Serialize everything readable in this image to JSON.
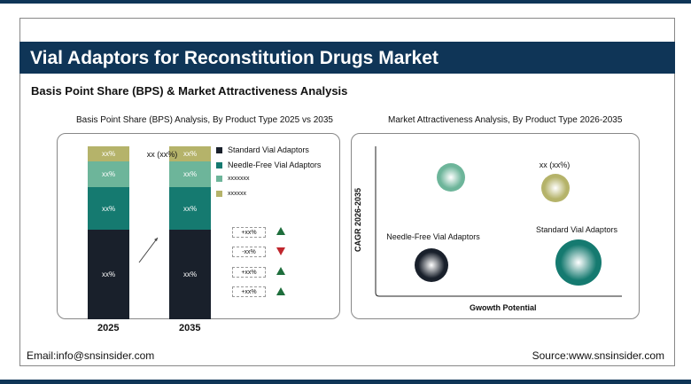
{
  "title": "Vial Adaptors for Reconstitution Drugs Market",
  "subtitle": "Basis Point Share (BPS) & Market Attractiveness Analysis",
  "footer": {
    "email": "Email:info@snsinsider.com",
    "source": "Source:www.snsinsider.com"
  },
  "colors": {
    "navy": "#0f3557",
    "standard": "#19202b",
    "needle_free": "#157a70",
    "seg3": "#6db59a",
    "seg4": "#b5b36a",
    "up": "#1e6e3c",
    "down": "#c0262d"
  },
  "chart_data": [
    {
      "type": "bar",
      "stacked": true,
      "title": "Basis Point Share (BPS) Analysis, By Product Type 2025 vs 2035",
      "categories": [
        "2025",
        "2035"
      ],
      "series": [
        {
          "name": "Standard Vial Adaptors",
          "labels": [
            "xx%",
            "xx%"
          ],
          "color": "#19202b"
        },
        {
          "name": "Needle-Free Vial Adaptors",
          "labels": [
            "xx%",
            "xx%"
          ],
          "color": "#157a70"
        },
        {
          "name": "xxxxxxx",
          "labels": [
            "xx%",
            "xx%"
          ],
          "color": "#6db59a"
        },
        {
          "name": "xxxxxx",
          "labels": [
            "xx%",
            "xx%"
          ],
          "color": "#b5b36a"
        }
      ],
      "changes": [
        {
          "label": "+xx%",
          "direction": "up"
        },
        {
          "label": "-xx%",
          "direction": "down"
        },
        {
          "label": "+xx%",
          "direction": "up"
        },
        {
          "label": "+xx%",
          "direction": "up"
        }
      ],
      "legend": "right"
    },
    {
      "type": "scatter",
      "title": "Market Attractiveness Analysis, By Product Type 2026-2035",
      "xlabel": "Gwowth Potential",
      "ylabel": "CAGR 2026-2035",
      "points": [
        {
          "label": "xx (xx%)",
          "color": "#6db59a"
        },
        {
          "label": "xx (xx%)",
          "color": "#b5b36a"
        },
        {
          "label": "Needle-Free Vial Adaptors",
          "color": "#19202b"
        },
        {
          "label": "Standard Vial Adaptors",
          "color": "#157a70"
        }
      ]
    }
  ]
}
